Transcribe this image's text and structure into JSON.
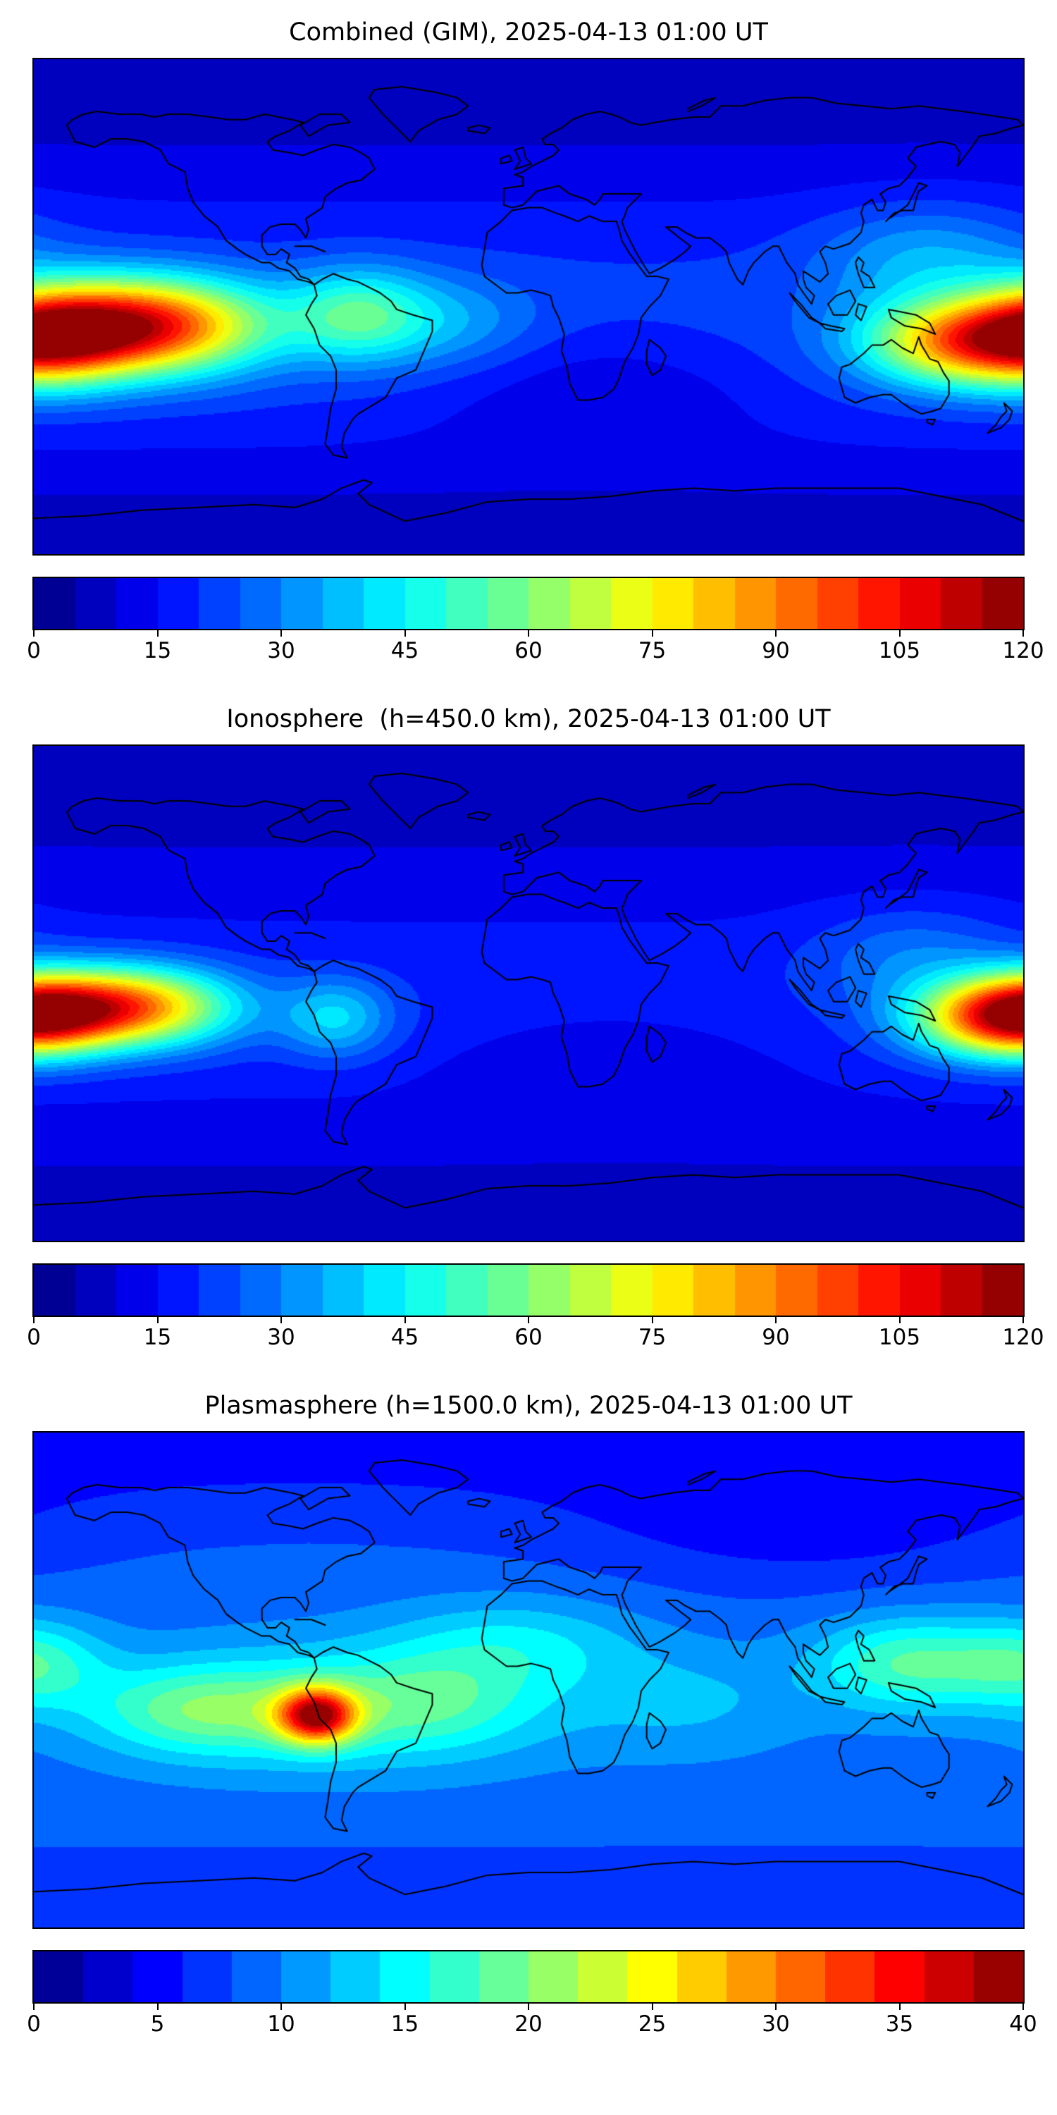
{
  "figure": {
    "background": "#ffffff",
    "text_color": "#000000"
  },
  "chart_data": {
    "type": "heatmap",
    "subtype": "filled-contour-global-maps",
    "projection": "equirectangular",
    "lon_range": [
      -180,
      180
    ],
    "lat_range": [
      -90,
      90
    ],
    "colormap": "jet",
    "panels": [
      {
        "title": "Combined (GIM), 2025-04-13 01:00 UT",
        "colorbar": {
          "min": 0,
          "max": 120,
          "ticks": [
            0,
            15,
            30,
            45,
            60,
            75,
            90,
            105,
            120
          ],
          "levels": 24
        },
        "field": {
          "base": 13,
          "blobs": [
            {
              "lon": 0,
              "lat": -8,
              "amp": 10,
              "slon": 999,
              "slat": 30
            },
            {
              "lon": -140,
              "lat": -7,
              "amp": 82,
              "slon": 30,
              "slat": 12
            },
            {
              "lon": -172,
              "lat": -11,
              "amp": 45,
              "slon": 20,
              "slat": 12
            },
            {
              "lon": 158,
              "lat": -13,
              "amp": 62,
              "slon": 25,
              "slat": 11
            },
            {
              "lon": -62,
              "lat": -3,
              "amp": 30,
              "slon": 18,
              "slat": 12
            },
            {
              "lon": -28,
              "lat": -6,
              "amp": 12,
              "slon": 22,
              "slat": 12
            },
            {
              "lon": 145,
              "lat": 18,
              "amp": 16,
              "slon": 28,
              "slat": 14
            },
            {
              "lon": 25,
              "lat": -28,
              "amp": -9,
              "slon": 45,
              "slat": 16
            },
            {
              "lon": 0,
              "lat": 90,
              "amp": -8,
              "slon": 999,
              "slat": 26
            },
            {
              "lon": 0,
              "lat": -90,
              "amp": -7,
              "slon": 999,
              "slat": 22
            }
          ]
        }
      },
      {
        "title": "Ionosphere  (h=450.0 km), 2025-04-13 01:00 UT",
        "colorbar": {
          "min": 0,
          "max": 120,
          "ticks": [
            0,
            15,
            30,
            45,
            60,
            75,
            90,
            105,
            120
          ],
          "levels": 24
        },
        "field": {
          "base": 11,
          "blobs": [
            {
              "lon": 0,
              "lat": -6,
              "amp": 8,
              "slon": 999,
              "slat": 28
            },
            {
              "lon": -148,
              "lat": -5,
              "amp": 75,
              "slon": 27,
              "slat": 10
            },
            {
              "lon": -178,
              "lat": -8,
              "amp": 35,
              "slon": 18,
              "slat": 10
            },
            {
              "lon": 168,
              "lat": -9,
              "amp": 55,
              "slon": 22,
              "slat": 10
            },
            {
              "lon": -70,
              "lat": -9,
              "amp": 22,
              "slon": 14,
              "slat": 10
            },
            {
              "lon": 140,
              "lat": 14,
              "amp": 12,
              "slon": 26,
              "slat": 13
            },
            {
              "lon": 30,
              "lat": -24,
              "amp": -6,
              "slon": 45,
              "slat": 15
            },
            {
              "lon": 0,
              "lat": 90,
              "amp": -6,
              "slon": 999,
              "slat": 24
            },
            {
              "lon": 0,
              "lat": -90,
              "amp": -5,
              "slon": 999,
              "slat": 20
            }
          ]
        }
      },
      {
        "title": "Plasmasphere (h=1500.0 km), 2025-04-13 01:00 UT",
        "colorbar": {
          "min": 0,
          "max": 40,
          "ticks": [
            0,
            5,
            10,
            15,
            20,
            25,
            30,
            35,
            40
          ],
          "levels": 20
        },
        "field": {
          "base": 9,
          "blobs": [
            {
              "lon": -70,
              "lat": -10,
              "amp": 7,
              "slon": 55,
              "slat": 16
            },
            {
              "lon": -77,
              "lat": -13,
              "amp": 23,
              "slon": 10,
              "slat": 7
            },
            {
              "lon": -120,
              "lat": -11,
              "amp": 7,
              "slon": 28,
              "slat": 11
            },
            {
              "lon": -35,
              "lat": -8,
              "amp": 4,
              "slon": 25,
              "slat": 12
            },
            {
              "lon": 138,
              "lat": 6,
              "amp": 9,
              "slon": 24,
              "slat": 12
            },
            {
              "lon": 180,
              "lat": 6,
              "amp": 7,
              "slon": 18,
              "slat": 11
            },
            {
              "lon": -5,
              "lat": 13,
              "amp": 5,
              "slon": 32,
              "slat": 12
            },
            {
              "lon": 60,
              "lat": -8,
              "amp": 3,
              "slon": 30,
              "slat": 14
            },
            {
              "lon": 100,
              "lat": 55,
              "amp": -3,
              "slon": 60,
              "slat": 18
            },
            {
              "lon": 0,
              "lat": 90,
              "amp": -4,
              "slon": 999,
              "slat": 24
            },
            {
              "lon": 0,
              "lat": -90,
              "amp": -3,
              "slon": 999,
              "slat": 20
            }
          ]
        }
      }
    ]
  }
}
